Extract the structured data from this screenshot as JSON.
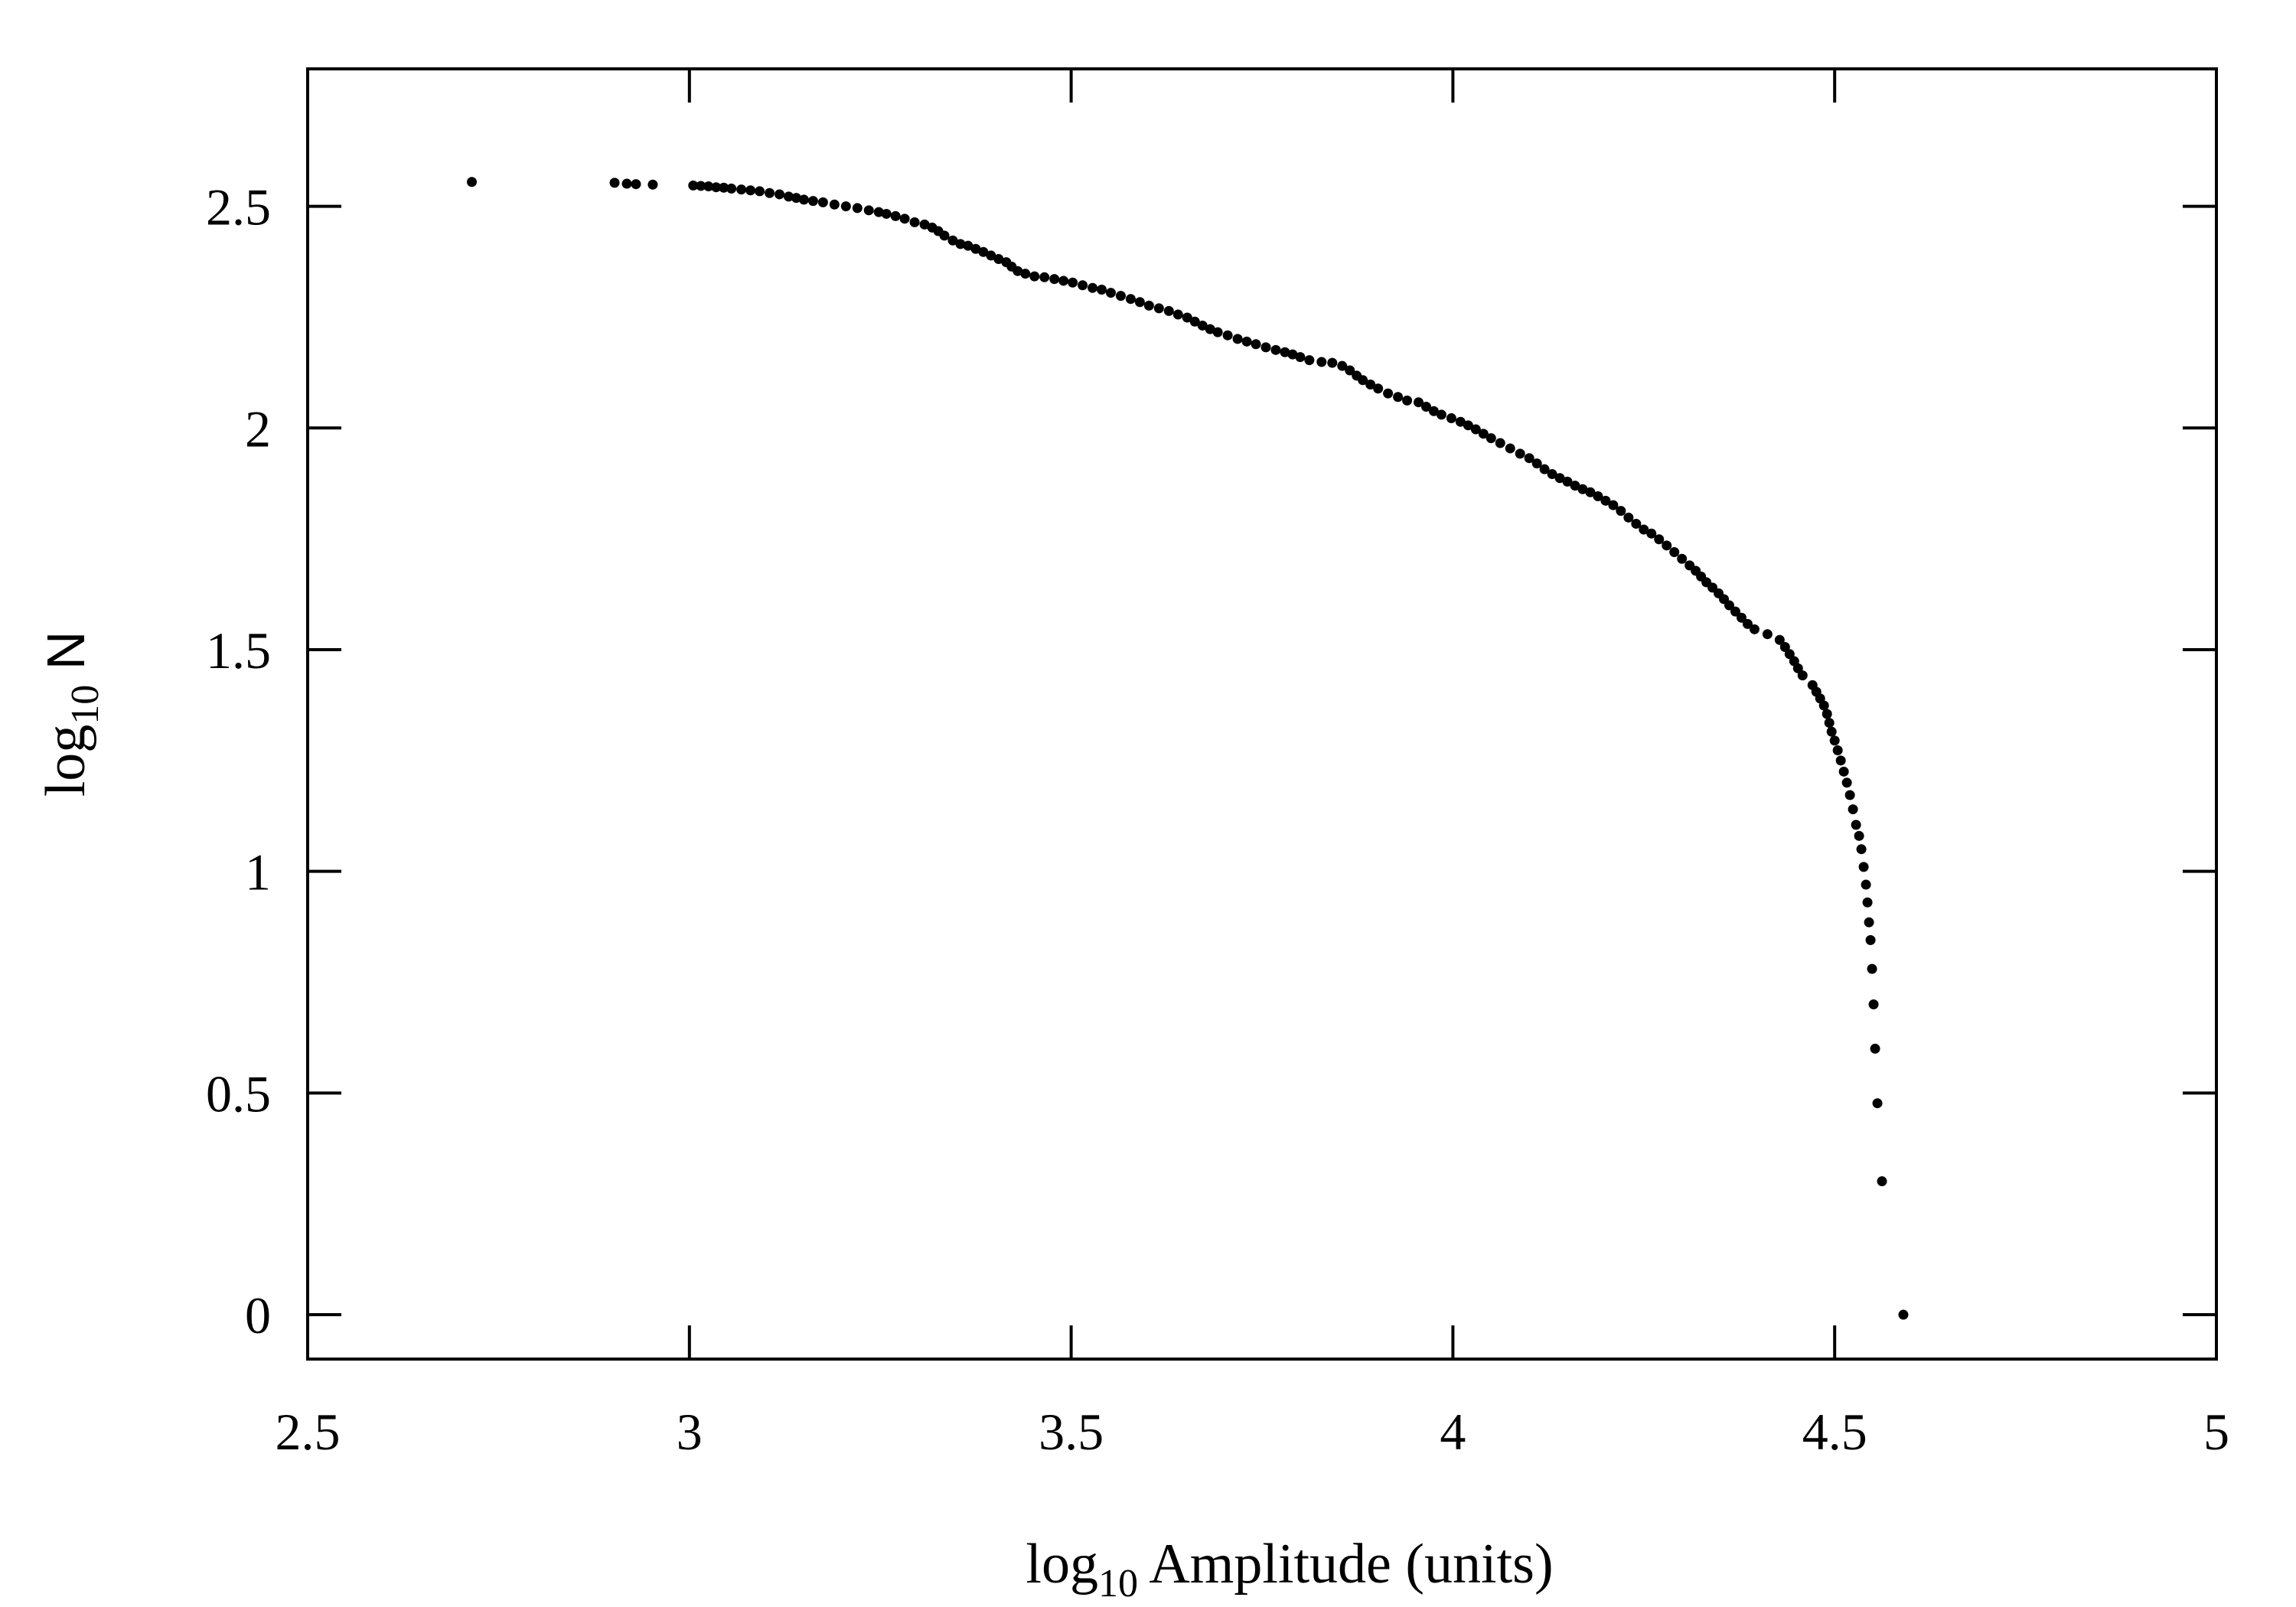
{
  "chart_data": {
    "type": "scatter",
    "xlabel": {
      "prefix": "log",
      "sub": "10",
      "rest": " Amplitude (units)"
    },
    "ylabel": {
      "prefix": "log",
      "sub": "10",
      "rest": " N"
    },
    "xlim": [
      2.5,
      5
    ],
    "ylim": [
      -0.1,
      2.81
    ],
    "xticks": [
      2.5,
      3,
      3.5,
      4,
      4.5,
      5
    ],
    "yticks": [
      0,
      0.5,
      1,
      1.5,
      2,
      2.5
    ],
    "xtick_labels": [
      "2.5",
      "3",
      "3.5",
      "4",
      "4.5",
      "5"
    ],
    "ytick_labels": [
      "0",
      "0.5",
      "1",
      "1.5",
      "2",
      "2.5"
    ],
    "grid": false,
    "legend": "none",
    "marker_color": "#000000",
    "series": [
      {
        "points": [
          [
            2.715,
            2.555
          ],
          [
            2.902,
            2.553
          ],
          [
            2.918,
            2.551
          ],
          [
            2.93,
            2.55
          ],
          [
            2.952,
            2.549
          ],
          [
            3.005,
            2.547
          ],
          [
            3.015,
            2.546
          ],
          [
            3.025,
            2.545
          ],
          [
            3.035,
            2.543
          ],
          [
            3.045,
            2.542
          ],
          [
            3.055,
            2.54
          ],
          [
            3.068,
            2.538
          ],
          [
            3.08,
            2.536
          ],
          [
            3.092,
            2.534
          ],
          [
            3.105,
            2.53
          ],
          [
            3.118,
            2.527
          ],
          [
            3.13,
            2.522
          ],
          [
            3.14,
            2.519
          ],
          [
            3.15,
            2.515
          ],
          [
            3.162,
            2.512
          ],
          [
            3.175,
            2.509
          ],
          [
            3.19,
            2.504
          ],
          [
            3.205,
            2.5
          ],
          [
            3.22,
            2.496
          ],
          [
            3.235,
            2.491
          ],
          [
            3.248,
            2.487
          ],
          [
            3.258,
            2.483
          ],
          [
            3.27,
            2.478
          ],
          [
            3.282,
            2.472
          ],
          [
            3.295,
            2.464
          ],
          [
            3.308,
            2.459
          ],
          [
            3.318,
            2.452
          ],
          [
            3.326,
            2.444
          ],
          [
            3.334,
            2.434
          ],
          [
            3.345,
            2.423
          ],
          [
            3.355,
            2.415
          ],
          [
            3.365,
            2.411
          ],
          [
            3.375,
            2.404
          ],
          [
            3.385,
            2.397
          ],
          [
            3.395,
            2.389
          ],
          [
            3.405,
            2.381
          ],
          [
            3.415,
            2.374
          ],
          [
            3.422,
            2.364
          ],
          [
            3.43,
            2.354
          ],
          [
            3.44,
            2.348
          ],
          [
            3.452,
            2.342
          ],
          [
            3.465,
            2.34
          ],
          [
            3.478,
            2.336
          ],
          [
            3.49,
            2.332
          ],
          [
            3.502,
            2.328
          ],
          [
            3.515,
            2.322
          ],
          [
            3.528,
            2.316
          ],
          [
            3.54,
            2.312
          ],
          [
            3.552,
            2.305
          ],
          [
            3.565,
            2.298
          ],
          [
            3.578,
            2.291
          ],
          [
            3.59,
            2.284
          ],
          [
            3.602,
            2.276
          ],
          [
            3.615,
            2.27
          ],
          [
            3.628,
            2.264
          ],
          [
            3.64,
            2.256
          ],
          [
            3.652,
            2.249
          ],
          [
            3.662,
            2.24
          ],
          [
            3.672,
            2.231
          ],
          [
            3.682,
            2.223
          ],
          [
            3.692,
            2.216
          ],
          [
            3.705,
            2.209
          ],
          [
            3.718,
            2.201
          ],
          [
            3.73,
            2.195
          ],
          [
            3.742,
            2.189
          ],
          [
            3.755,
            2.182
          ],
          [
            3.768,
            2.176
          ],
          [
            3.78,
            2.171
          ],
          [
            3.79,
            2.166
          ],
          [
            3.8,
            2.16
          ],
          [
            3.812,
            2.153
          ],
          [
            3.828,
            2.149
          ],
          [
            3.842,
            2.147
          ],
          [
            3.855,
            2.14
          ],
          [
            3.865,
            2.13
          ],
          [
            3.874,
            2.118
          ],
          [
            3.882,
            2.108
          ],
          [
            3.892,
            2.098
          ],
          [
            3.902,
            2.089
          ],
          [
            3.915,
            2.078
          ],
          [
            3.928,
            2.07
          ],
          [
            3.94,
            2.062
          ],
          [
            3.955,
            2.058
          ],
          [
            3.965,
            2.048
          ],
          [
            3.975,
            2.038
          ],
          [
            3.985,
            2.03
          ],
          [
            3.998,
            2.022
          ],
          [
            4.01,
            2.014
          ],
          [
            4.02,
            2.006
          ],
          [
            4.03,
            1.997
          ],
          [
            4.04,
            1.987
          ],
          [
            4.05,
            1.977
          ],
          [
            4.062,
            1.966
          ],
          [
            4.075,
            1.954
          ],
          [
            4.088,
            1.942
          ],
          [
            4.1,
            1.932
          ],
          [
            4.11,
            1.92
          ],
          [
            4.12,
            1.907
          ],
          [
            4.13,
            1.896
          ],
          [
            4.14,
            1.887
          ],
          [
            4.15,
            1.879
          ],
          [
            4.16,
            1.87
          ],
          [
            4.17,
            1.862
          ],
          [
            4.18,
            1.855
          ],
          [
            4.19,
            1.846
          ],
          [
            4.2,
            1.836
          ],
          [
            4.21,
            1.826
          ],
          [
            4.22,
            1.813
          ],
          [
            4.23,
            1.798
          ],
          [
            4.24,
            1.784
          ],
          [
            4.25,
            1.771
          ],
          [
            4.26,
            1.762
          ],
          [
            4.27,
            1.749
          ],
          [
            4.28,
            1.735
          ],
          [
            4.29,
            1.72
          ],
          [
            4.3,
            1.705
          ],
          [
            4.31,
            1.69
          ],
          [
            4.318,
            1.678
          ],
          [
            4.325,
            1.665
          ],
          [
            4.332,
            1.652
          ],
          [
            4.34,
            1.64
          ],
          [
            4.348,
            1.627
          ],
          [
            4.355,
            1.614
          ],
          [
            4.362,
            1.6
          ],
          [
            4.37,
            1.586
          ],
          [
            4.378,
            1.572
          ],
          [
            4.386,
            1.558
          ],
          [
            4.395,
            1.546
          ],
          [
            4.412,
            1.535
          ],
          [
            4.428,
            1.522
          ],
          [
            4.435,
            1.506
          ],
          [
            4.441,
            1.49
          ],
          [
            4.447,
            1.474
          ],
          [
            4.452,
            1.458
          ],
          [
            4.458,
            1.442
          ],
          [
            4.471,
            1.42
          ],
          [
            4.476,
            1.405
          ],
          [
            4.481,
            1.39
          ],
          [
            4.486,
            1.374
          ],
          [
            4.49,
            1.355
          ],
          [
            4.493,
            1.335
          ],
          [
            4.496,
            1.315
          ],
          [
            4.5,
            1.295
          ],
          [
            4.504,
            1.273
          ],
          [
            4.508,
            1.25
          ],
          [
            4.512,
            1.225
          ],
          [
            4.516,
            1.2
          ],
          [
            4.52,
            1.172
          ],
          [
            4.524,
            1.14
          ],
          [
            4.528,
            1.105
          ],
          [
            4.532,
            1.08
          ],
          [
            4.535,
            1.05
          ],
          [
            4.538,
            1.01
          ],
          [
            4.541,
            0.97
          ],
          [
            4.543,
            0.93
          ],
          [
            4.545,
            0.885
          ],
          [
            4.547,
            0.845
          ],
          [
            4.549,
            0.78
          ],
          [
            4.551,
            0.7
          ],
          [
            4.553,
            0.6
          ],
          [
            4.556,
            0.477
          ],
          [
            4.562,
            0.301
          ],
          [
            4.59,
            0.0
          ]
        ]
      }
    ]
  }
}
